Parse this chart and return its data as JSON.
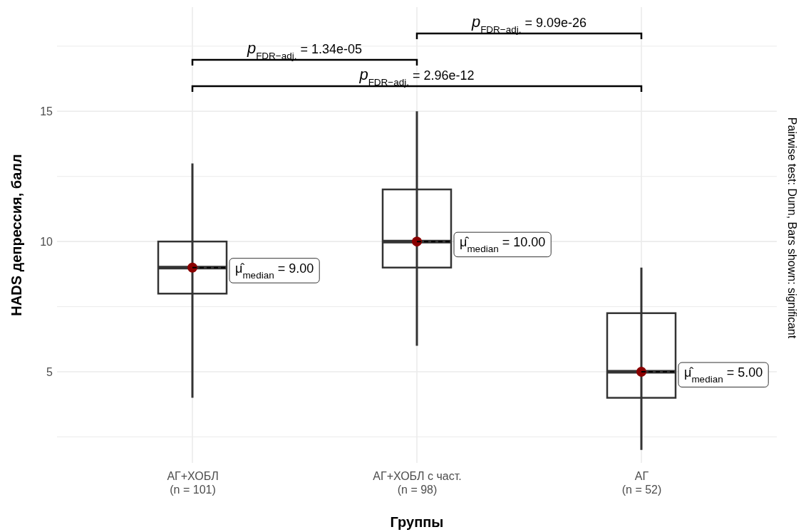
{
  "chart_data": {
    "type": "box",
    "xlabel": "Группы",
    "ylabel": "HADS депрессия, балл",
    "categories": [
      "АГ+ХОБЛ\n(n = 101)",
      "АГ+ХОБЛ с част.\n(n = 98)",
      "АГ\n(n = 52)"
    ],
    "boxes": [
      {
        "low": 4,
        "q1": 8,
        "median": 9,
        "q3": 10,
        "high": 13
      },
      {
        "low": 6,
        "q1": 9,
        "median": 10,
        "q3": 12,
        "high": 15
      },
      {
        "low": 2,
        "q1": 4,
        "median": 5,
        "q3": 7.25,
        "high": 9
      }
    ],
    "series": [
      {
        "type": "scatter",
        "color": "#8b0000",
        "x": [
          "АГ+ХОБЛ\n(n = 101)",
          "АГ+ХОБЛ с част.\n(n = 98)",
          "АГ\n(n = 52)"
        ],
        "values": [
          9,
          10,
          5
        ]
      }
    ],
    "ylim": [
      1.5,
      19
    ],
    "yticks": [
      {
        "value": 2.5,
        "label": null
      },
      5,
      {
        "value": 7.5,
        "label": null
      },
      10,
      {
        "value": 12.5,
        "label": null
      },
      15,
      {
        "value": 17.5,
        "label": null
      }
    ],
    "grid": true,
    "annotations": [
      "μ̂$_{median}$ = 9.00",
      "μ̂$_{median}$ = 10.00",
      "μ̂$_{median}$ = 5.00",
      "p$_{FDR−adj.}$ = 1.34e-05",
      "p$_{FDR−adj.}$ = 9.09e-26",
      "p$_{FDR−adj.}$ = 2.96e-12",
      "Pairwise test: Dunn, Bars shown: significant"
    ]
  }
}
